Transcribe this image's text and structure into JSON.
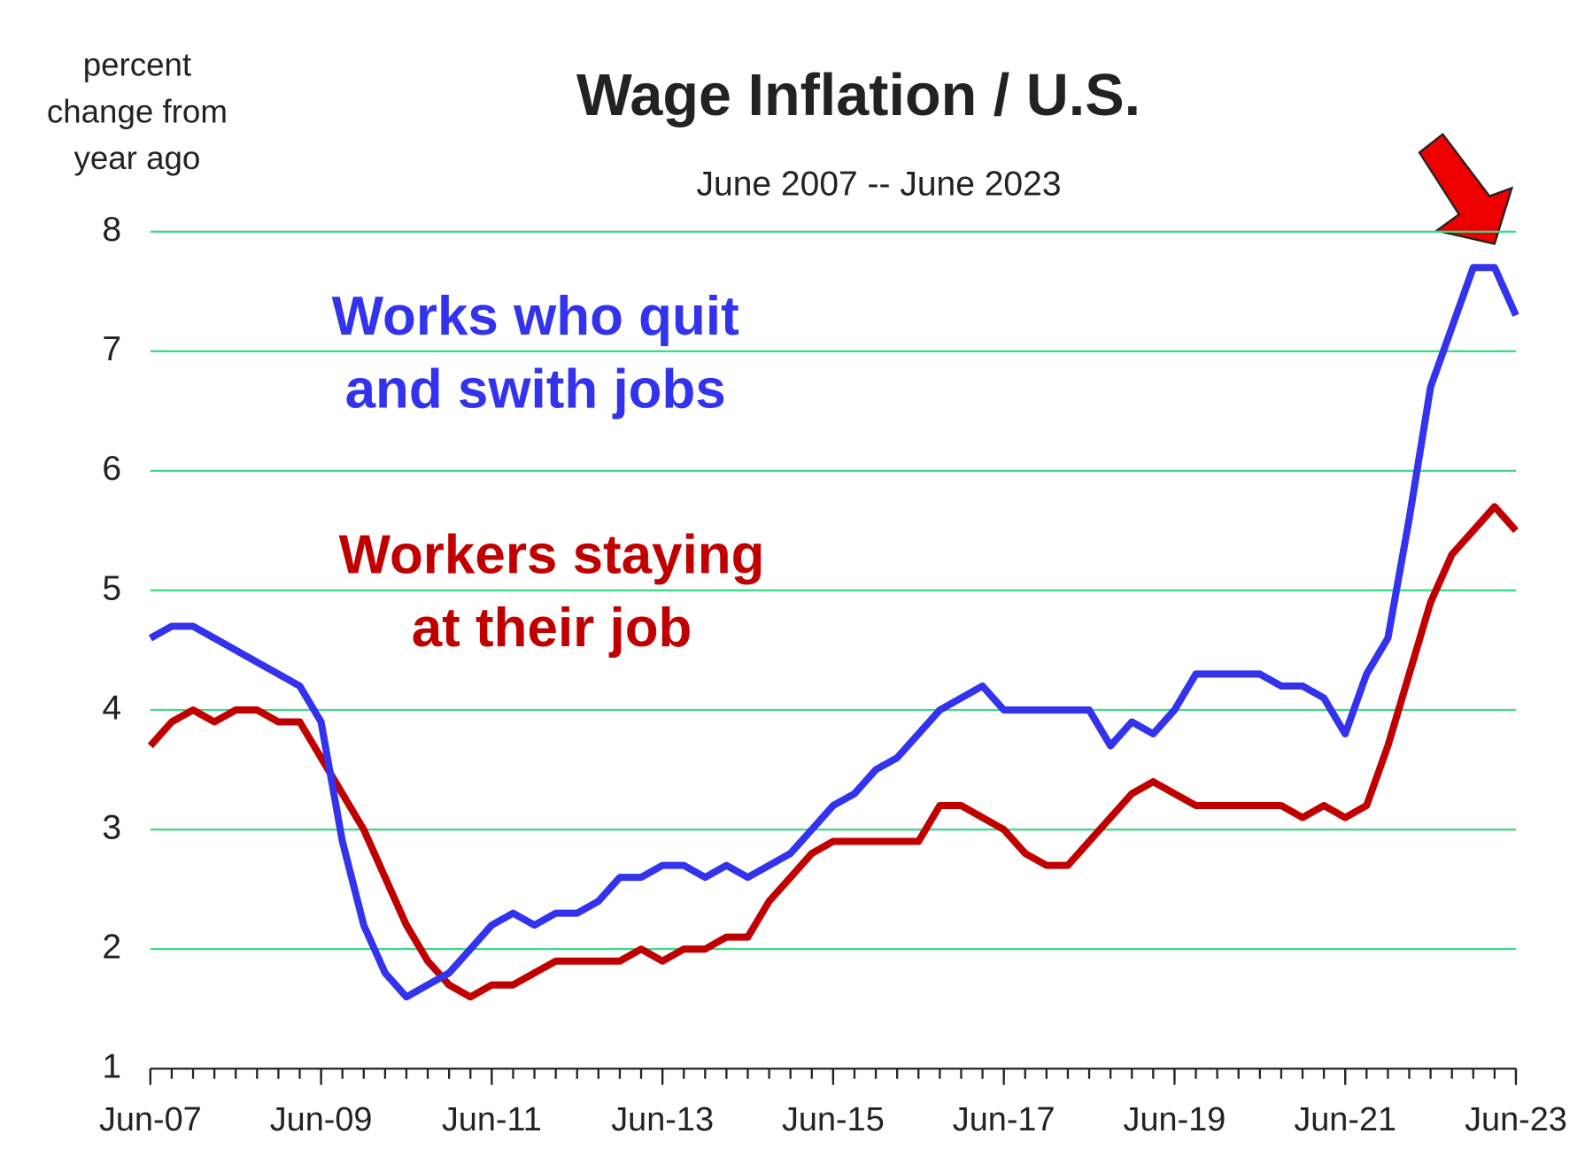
{
  "chart_data": {
    "type": "line",
    "title": "Wage Inflation / U.S.",
    "subtitle": "June 2007 -- June 2023",
    "y_label": [
      "percent",
      "change  from",
      "year ago"
    ],
    "x": [
      "Jun-07",
      "Sep-07",
      "Dec-07",
      "Mar-08",
      "Jun-08",
      "Sep-08",
      "Dec-08",
      "Mar-09",
      "Jun-09",
      "Sep-09",
      "Dec-09",
      "Mar-10",
      "Jun-10",
      "Sep-10",
      "Dec-10",
      "Mar-11",
      "Jun-11",
      "Sep-11",
      "Dec-11",
      "Mar-12",
      "Jun-12",
      "Sep-12",
      "Dec-12",
      "Mar-13",
      "Jun-13",
      "Sep-13",
      "Dec-13",
      "Mar-14",
      "Jun-14",
      "Sep-14",
      "Dec-14",
      "Mar-15",
      "Jun-15",
      "Sep-15",
      "Dec-15",
      "Mar-16",
      "Jun-16",
      "Sep-16",
      "Dec-16",
      "Mar-17",
      "Jun-17",
      "Sep-17",
      "Dec-17",
      "Mar-18",
      "Jun-18",
      "Sep-18",
      "Dec-18",
      "Mar-19",
      "Jun-19",
      "Sep-19",
      "Dec-19",
      "Mar-20",
      "Jun-20",
      "Sep-20",
      "Dec-20",
      "Mar-21",
      "Jun-21",
      "Sep-21",
      "Dec-21",
      "Mar-22",
      "Jun-22",
      "Sep-22",
      "Dec-22",
      "Mar-23",
      "Jun-23"
    ],
    "series": [
      {
        "name": [
          "Works who quit",
          "and swith jobs"
        ],
        "color": "#3333ee",
        "values": [
          4.6,
          4.7,
          4.7,
          4.6,
          4.5,
          4.4,
          4.3,
          4.2,
          3.9,
          2.9,
          2.2,
          1.8,
          1.6,
          1.7,
          1.8,
          2.0,
          2.2,
          2.3,
          2.2,
          2.3,
          2.3,
          2.4,
          2.6,
          2.6,
          2.7,
          2.7,
          2.6,
          2.7,
          2.6,
          2.7,
          2.8,
          3.0,
          3.2,
          3.3,
          3.5,
          3.6,
          3.8,
          4.0,
          4.1,
          4.2,
          4.0,
          4.0,
          4.0,
          4.0,
          4.0,
          3.7,
          3.9,
          3.8,
          4.0,
          4.3,
          4.3,
          4.3,
          4.3,
          4.2,
          4.2,
          4.1,
          3.8,
          4.3,
          4.6,
          5.6,
          6.7,
          7.2,
          7.7,
          7.7,
          7.3
        ]
      },
      {
        "name": [
          "Workers staying",
          "at their job"
        ],
        "color": "#c00000",
        "values": [
          3.7,
          3.9,
          4.0,
          3.9,
          4.0,
          4.0,
          3.9,
          3.9,
          3.6,
          3.3,
          3.0,
          2.6,
          2.2,
          1.9,
          1.7,
          1.6,
          1.7,
          1.7,
          1.8,
          1.9,
          1.9,
          1.9,
          1.9,
          2.0,
          1.9,
          2.0,
          2.0,
          2.1,
          2.1,
          2.4,
          2.6,
          2.8,
          2.9,
          2.9,
          2.9,
          2.9,
          2.9,
          3.2,
          3.2,
          3.1,
          3.0,
          2.8,
          2.7,
          2.7,
          2.9,
          3.1,
          3.3,
          3.4,
          3.3,
          3.2,
          3.2,
          3.2,
          3.2,
          3.2,
          3.1,
          3.2,
          3.1,
          3.2,
          3.7,
          4.3,
          4.9,
          5.3,
          5.5,
          5.7,
          5.5
        ]
      }
    ],
    "xlim": [
      "Jun-07",
      "Jun-23"
    ],
    "xticks": [
      "Jun-07",
      "Jun-09",
      "Jun-11",
      "Jun-13",
      "Jun-15",
      "Jun-17",
      "Jun-19",
      "Jun-21",
      "Jun-23"
    ],
    "ylim": [
      1,
      8
    ],
    "yticks": [
      1,
      2,
      3,
      4,
      5,
      6,
      7,
      8
    ],
    "grid": true,
    "grid_color": "#3fd98a"
  }
}
